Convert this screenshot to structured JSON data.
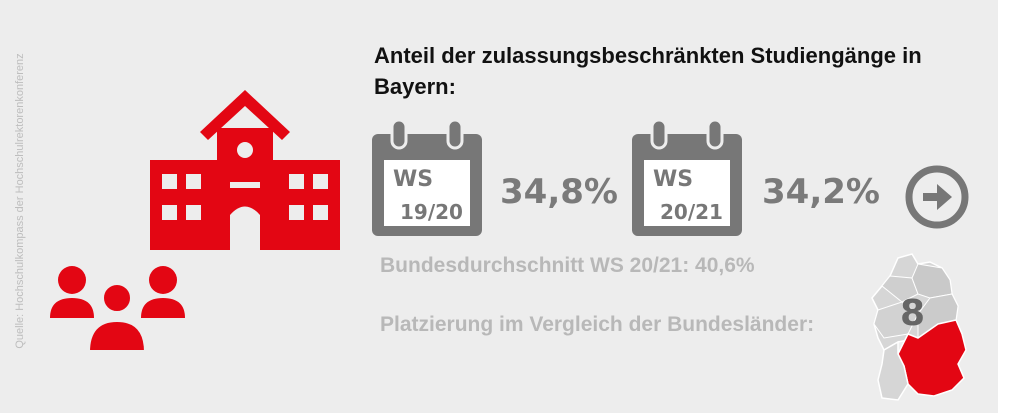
{
  "source": "Quelle: Hochschulkompass der Hochschulrektorenkonferenz",
  "title": "Anteil der zulassungsbeschränkten Studiengänge in Bayern:",
  "semester1": {
    "label_top": "WS",
    "label_bottom": "19/20",
    "value": "34,8%"
  },
  "semester2": {
    "label_top": "WS",
    "label_bottom": "20/21",
    "value": "34,2%"
  },
  "national_average": "Bundesdurchschnitt WS 20/21: 40,6%",
  "ranking_label": "Platzierung im Vergleich der Bundesländer:",
  "ranking_value": "8",
  "colors": {
    "accent": "#e30613",
    "gray": "#777777",
    "light_text": "#b8b8b8",
    "background": "#ededed"
  },
  "icons": [
    "school-building-icon",
    "people-group-icon",
    "calendar-icon",
    "arrow-right-circle-icon",
    "germany-map-icon"
  ]
}
